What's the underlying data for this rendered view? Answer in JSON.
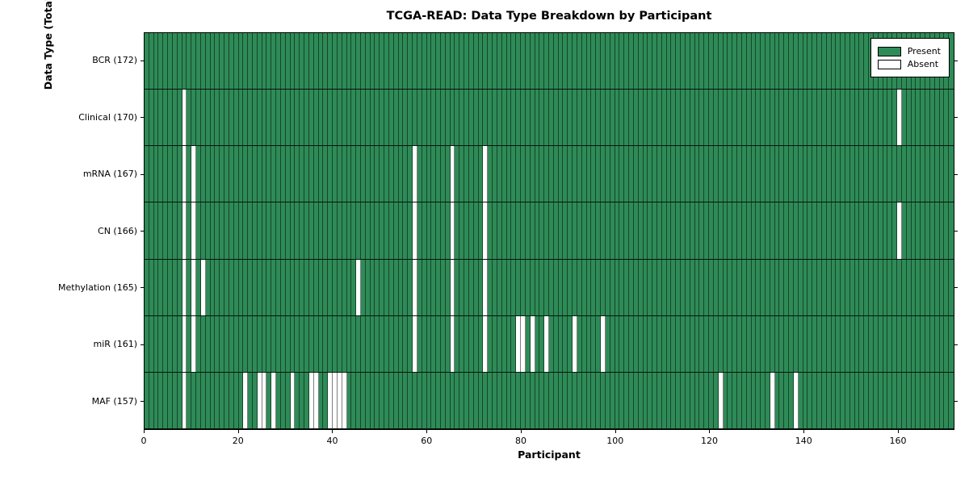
{
  "chart_data": {
    "type": "heatmap",
    "title": "TCGA-READ: Data Type Breakdown by Participant",
    "xlabel": "Participant",
    "ylabel": "Data Type (Total Sample Count)",
    "x_ticks": [
      0,
      20,
      40,
      60,
      80,
      100,
      120,
      140,
      160
    ],
    "x_range": [
      0,
      172
    ],
    "n_participants": 172,
    "grid": "cell-edges",
    "legend_position": "upper-right",
    "legend": [
      {
        "label": "Present",
        "color": "#2e8b57"
      },
      {
        "label": "Absent",
        "color": "#ffffff"
      }
    ],
    "colors": {
      "present": "#2e8b57",
      "absent": "#ffffff",
      "cell_edge": "rgba(0,0,0,0.5)",
      "row_edge": "rgba(0,0,0,0.85)",
      "axis": "#000000"
    },
    "rows": [
      {
        "label": "BCR (172)",
        "name": "BCR",
        "total": 172,
        "absent_participants": []
      },
      {
        "label": "Clinical (170)",
        "name": "Clinical",
        "total": 170,
        "absent_participants": [
          8,
          160
        ]
      },
      {
        "label": "mRNA (167)",
        "name": "mRNA",
        "total": 167,
        "absent_participants": [
          8,
          10,
          57,
          65,
          72
        ]
      },
      {
        "label": "CN (166)",
        "name": "CN",
        "total": 166,
        "absent_participants": [
          8,
          10,
          57,
          65,
          72,
          160
        ]
      },
      {
        "label": "Methylation (165)",
        "name": "Methylation",
        "total": 165,
        "absent_participants": [
          8,
          10,
          12,
          45,
          57,
          65,
          72
        ]
      },
      {
        "label": "miR (161)",
        "name": "miR",
        "total": 161,
        "absent_participants": [
          8,
          10,
          57,
          65,
          72,
          79,
          80,
          82,
          85,
          91,
          97
        ]
      },
      {
        "label": "MAF (157)",
        "name": "MAF",
        "total": 157,
        "absent_participants": [
          8,
          21,
          24,
          25,
          27,
          31,
          35,
          36,
          39,
          40,
          41,
          42,
          122,
          133,
          138
        ]
      }
    ]
  }
}
